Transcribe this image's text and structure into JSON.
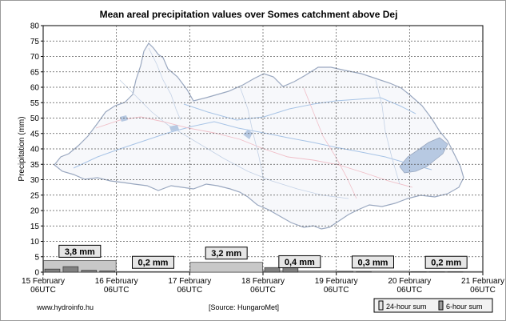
{
  "chart_data": {
    "type": "bar",
    "title": "Mean areal precipitation values over Somes catchment above Dej",
    "ylabel": "Precipitation (mm)",
    "xlabel": "",
    "ylim": [
      0,
      80
    ],
    "yticks": [
      0,
      5,
      10,
      15,
      20,
      25,
      30,
      35,
      40,
      45,
      50,
      55,
      60,
      65,
      70,
      75,
      80
    ],
    "x_ticks": [
      {
        "date": "15 February",
        "time": "06UTC"
      },
      {
        "date": "16 February",
        "time": "06UTC"
      },
      {
        "date": "17 February",
        "time": "06UTC"
      },
      {
        "date": "18 February",
        "time": "06UTC"
      },
      {
        "date": "19 February",
        "time": "06UTC"
      },
      {
        "date": "20 February",
        "time": "06UTC"
      },
      {
        "date": "21 February",
        "time": "06UTC"
      }
    ],
    "series": [
      {
        "name": "24-hour sum",
        "values": [
          3.8,
          0.2,
          3.2,
          0.4,
          0.3,
          0.2
        ]
      },
      {
        "name": "6-hour sum",
        "values": [
          1.0,
          1.8,
          0.6,
          0.4,
          0.0,
          0.0,
          0.0,
          0.0,
          0.0,
          0.0,
          0.0,
          0.0,
          1.5,
          1.7,
          0.0,
          0.0,
          0.3,
          0.1,
          0.0,
          0.0,
          0.1,
          0.1,
          0.1,
          0.0
        ]
      }
    ],
    "bar_labels": [
      "3,8 mm",
      "0,2 mm",
      "3,2 mm",
      "0,4 mm",
      "0,3 mm",
      "0,2 mm"
    ],
    "grid": true,
    "legend": "bottom-right"
  },
  "footer": {
    "site": "www.hydroinfo.hu",
    "source": "[Source: HungaroMet]",
    "legend_24h": "24-hour sum",
    "legend_6h": "6-hour sum"
  },
  "colors": {
    "bar24": "#c8c8c8",
    "bar6": "#808080",
    "map_fill": "#b7c9e2",
    "map_stroke": "#9aa8c0",
    "river": "#a8c4e6",
    "road": "#f0bfc8"
  }
}
